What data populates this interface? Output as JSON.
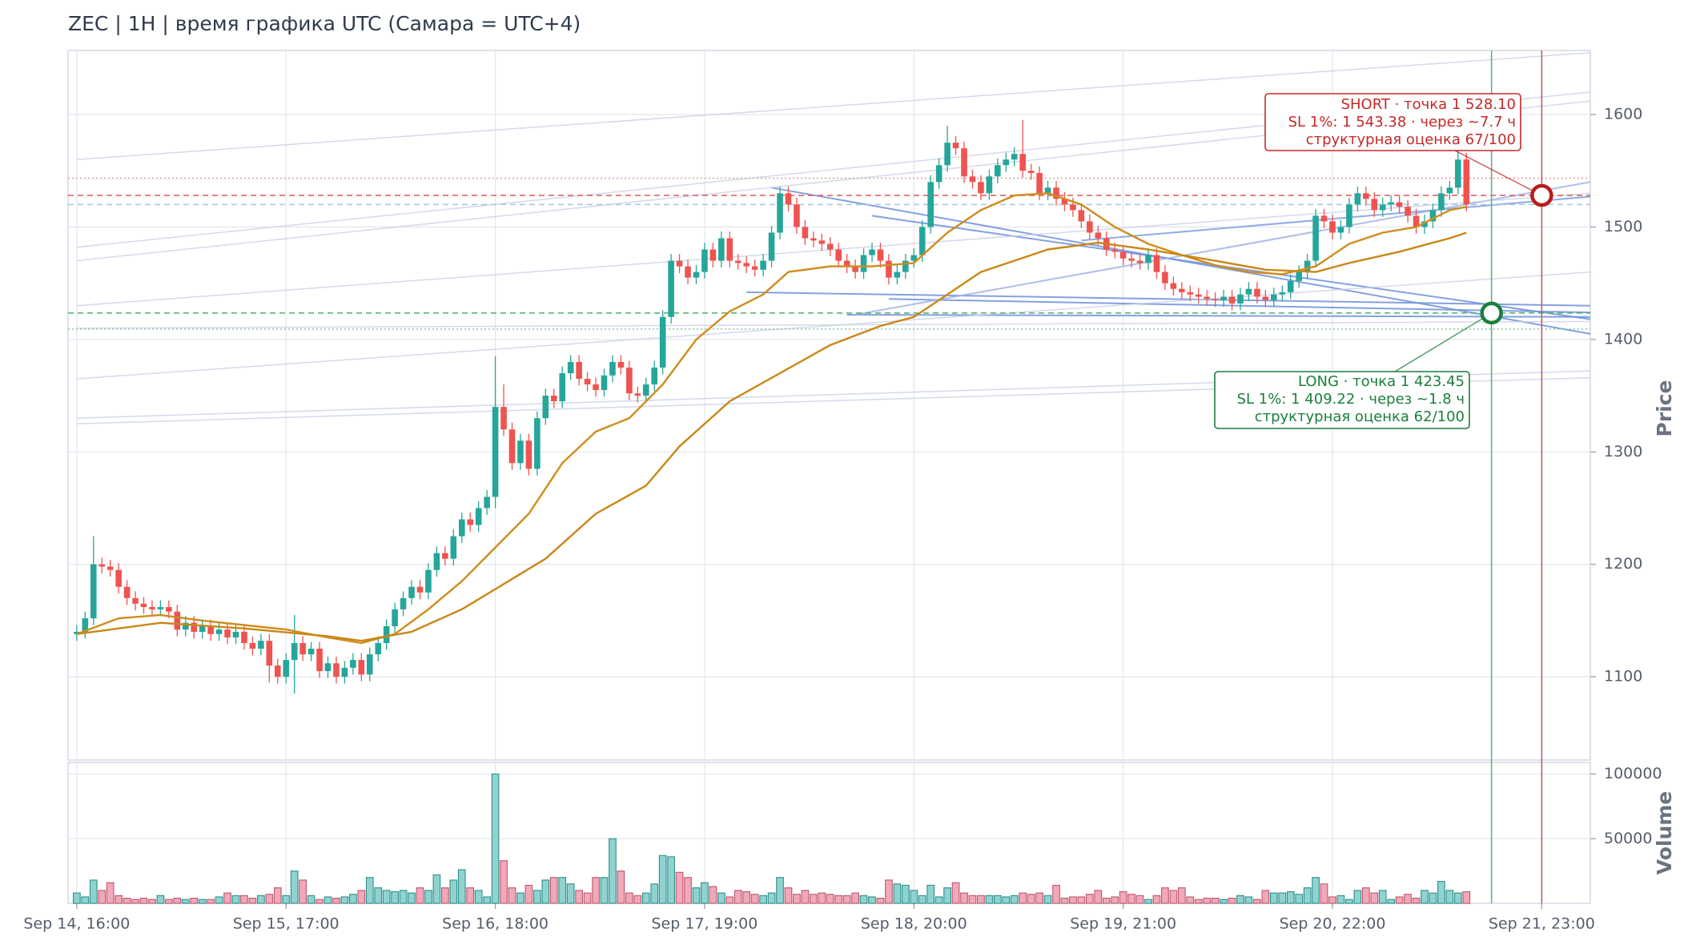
{
  "chart_data": {
    "type": "candlestick",
    "title": "ZEC | 1H | время графика UTC (Самара = UTC+4)",
    "ylabel": "Price",
    "volume_label": "Volume",
    "grid": true,
    "xlim": [
      -1.04,
      180.8
    ],
    "xticks": [
      {
        "value": 0,
        "label": "Sep 14, 16:00"
      },
      {
        "value": 25,
        "label": "Sep 15, 17:00"
      },
      {
        "value": 50,
        "label": "Sep 16, 18:00"
      },
      {
        "value": 75,
        "label": "Sep 17, 19:00"
      },
      {
        "value": 100,
        "label": "Sep 18, 20:00"
      },
      {
        "value": 125,
        "label": "Sep 19, 21:00"
      },
      {
        "value": 150,
        "label": "Sep 20, 22:00"
      },
      {
        "value": 175,
        "label": "Sep 21, 23:00"
      }
    ],
    "ylim": [
      1026,
      1657
    ],
    "yticks": [
      1100,
      1200,
      1300,
      1400,
      1500,
      1600
    ],
    "volume_ylim": [
      0,
      109000
    ],
    "volume_yticks": [
      50000,
      100000
    ],
    "up_color": "#26a69a",
    "down_color": "#ef5350",
    "volume_up_color": "#8fd3d0",
    "volume_down_color": "#f2a8b8",
    "open": [
      1138,
      1140,
      1152,
      1200,
      1198,
      1195,
      1180,
      1170,
      1165,
      1162,
      1160,
      1162,
      1158,
      1142,
      1148,
      1140,
      1145,
      1138,
      1142,
      1135,
      1140,
      1130,
      1125,
      1132,
      1110,
      1100,
      1115,
      1130,
      1120,
      1125,
      1105,
      1112,
      1100,
      1108,
      1115,
      1102,
      1120,
      1130,
      1145,
      1160,
      1170,
      1180,
      1175,
      1195,
      1210,
      1205,
      1225,
      1240,
      1235,
      1250,
      1260,
      1340,
      1320,
      1290,
      1310,
      1285,
      1330,
      1350,
      1345,
      1370,
      1380,
      1365,
      1360,
      1355,
      1368,
      1380,
      1375,
      1352,
      1350,
      1360,
      1375,
      1420,
      1470,
      1465,
      1455,
      1460,
      1480,
      1470,
      1490,
      1470,
      1468,
      1465,
      1462,
      1470,
      1495,
      1530,
      1520,
      1500,
      1490,
      1488,
      1485,
      1480,
      1470,
      1465,
      1460,
      1475,
      1480,
      1470,
      1455,
      1460,
      1470,
      1475,
      1500,
      1540,
      1555,
      1575,
      1570,
      1545,
      1540,
      1530,
      1545,
      1555,
      1560,
      1565,
      1550,
      1548,
      1530,
      1535,
      1525,
      1520,
      1515,
      1505,
      1495,
      1490,
      1480,
      1478,
      1472,
      1470,
      1468,
      1475,
      1460,
      1450,
      1445,
      1442,
      1440,
      1438,
      1436,
      1435,
      1438,
      1432,
      1440,
      1445,
      1438,
      1435,
      1440,
      1442,
      1452,
      1460,
      1470,
      1510,
      1505,
      1495,
      1500,
      1520,
      1530,
      1525,
      1515,
      1520,
      1522,
      1518,
      1510,
      1500,
      1505,
      1515,
      1530,
      1535,
      1560
    ],
    "high": [
      1146,
      1158,
      1225,
      1206,
      1204,
      1201,
      1186,
      1176,
      1171,
      1168,
      1168,
      1168,
      1164,
      1154,
      1154,
      1151,
      1151,
      1148,
      1148,
      1146,
      1146,
      1136,
      1138,
      1138,
      1116,
      1121,
      1155,
      1136,
      1131,
      1131,
      1118,
      1118,
      1114,
      1121,
      1121,
      1126,
      1136,
      1151,
      1166,
      1176,
      1186,
      1186,
      1201,
      1216,
      1216,
      1231,
      1246,
      1246,
      1256,
      1266,
      1385,
      1360,
      1326,
      1316,
      1316,
      1336,
      1356,
      1356,
      1376,
      1386,
      1386,
      1371,
      1366,
      1374,
      1386,
      1386,
      1381,
      1358,
      1366,
      1381,
      1426,
      1476,
      1476,
      1471,
      1466,
      1486,
      1486,
      1496,
      1496,
      1476,
      1474,
      1471,
      1476,
      1501,
      1536,
      1536,
      1526,
      1506,
      1496,
      1494,
      1491,
      1486,
      1476,
      1471,
      1481,
      1486,
      1486,
      1476,
      1466,
      1476,
      1481,
      1506,
      1546,
      1561,
      1590,
      1581,
      1576,
      1551,
      1546,
      1551,
      1561,
      1566,
      1571,
      1595,
      1556,
      1554,
      1541,
      1541,
      1531,
      1526,
      1521,
      1511,
      1501,
      1496,
      1486,
      1484,
      1478,
      1476,
      1481,
      1481,
      1466,
      1456,
      1451,
      1448,
      1446,
      1444,
      1442,
      1444,
      1444,
      1446,
      1451,
      1451,
      1444,
      1446,
      1448,
      1458,
      1466,
      1476,
      1516,
      1516,
      1511,
      1506,
      1526,
      1536,
      1536,
      1531,
      1526,
      1528,
      1528,
      1524,
      1516,
      1511,
      1521,
      1536,
      1541,
      1575,
      1566
    ],
    "low": [
      1132,
      1134,
      1146,
      1192,
      1189,
      1174,
      1164,
      1159,
      1156,
      1154,
      1154,
      1152,
      1136,
      1136,
      1134,
      1134,
      1132,
      1132,
      1129,
      1129,
      1124,
      1119,
      1119,
      1095,
      1094,
      1094,
      1085,
      1114,
      1114,
      1099,
      1099,
      1094,
      1094,
      1102,
      1096,
      1096,
      1114,
      1124,
      1139,
      1154,
      1164,
      1169,
      1169,
      1189,
      1199,
      1199,
      1219,
      1229,
      1229,
      1244,
      1250,
      1314,
      1284,
      1284,
      1279,
      1279,
      1324,
      1339,
      1339,
      1364,
      1359,
      1354,
      1349,
      1349,
      1362,
      1369,
      1346,
      1344,
      1344,
      1354,
      1369,
      1414,
      1459,
      1449,
      1449,
      1454,
      1464,
      1464,
      1464,
      1462,
      1459,
      1456,
      1456,
      1464,
      1489,
      1514,
      1494,
      1484,
      1482,
      1479,
      1474,
      1464,
      1459,
      1454,
      1454,
      1469,
      1464,
      1449,
      1449,
      1454,
      1464,
      1469,
      1494,
      1534,
      1549,
      1564,
      1539,
      1534,
      1524,
      1524,
      1539,
      1549,
      1554,
      1544,
      1542,
      1524,
      1524,
      1519,
      1514,
      1509,
      1499,
      1489,
      1484,
      1474,
      1472,
      1466,
      1464,
      1462,
      1462,
      1454,
      1444,
      1439,
      1436,
      1434,
      1432,
      1430,
      1429,
      1429,
      1426,
      1426,
      1434,
      1432,
      1429,
      1429,
      1434,
      1436,
      1446,
      1454,
      1464,
      1499,
      1489,
      1489,
      1494,
      1514,
      1519,
      1509,
      1509,
      1514,
      1512,
      1504,
      1494,
      1494,
      1499,
      1509,
      1524,
      1529,
      1514
    ],
    "close": [
      1140,
      1152,
      1200,
      1198,
      1195,
      1180,
      1170,
      1165,
      1162,
      1160,
      1162,
      1158,
      1142,
      1148,
      1140,
      1145,
      1138,
      1142,
      1135,
      1140,
      1130,
      1125,
      1132,
      1110,
      1100,
      1115,
      1130,
      1120,
      1125,
      1105,
      1112,
      1100,
      1108,
      1115,
      1102,
      1120,
      1130,
      1145,
      1160,
      1170,
      1180,
      1175,
      1195,
      1210,
      1205,
      1225,
      1240,
      1235,
      1250,
      1260,
      1340,
      1320,
      1290,
      1310,
      1285,
      1330,
      1350,
      1345,
      1370,
      1380,
      1365,
      1360,
      1355,
      1368,
      1380,
      1375,
      1352,
      1350,
      1360,
      1375,
      1420,
      1470,
      1465,
      1455,
      1460,
      1480,
      1470,
      1490,
      1470,
      1468,
      1465,
      1462,
      1470,
      1495,
      1530,
      1520,
      1500,
      1490,
      1488,
      1485,
      1480,
      1470,
      1465,
      1460,
      1475,
      1480,
      1470,
      1455,
      1460,
      1470,
      1475,
      1500,
      1540,
      1555,
      1575,
      1570,
      1545,
      1540,
      1530,
      1545,
      1555,
      1560,
      1565,
      1550,
      1548,
      1530,
      1535,
      1525,
      1520,
      1515,
      1505,
      1495,
      1490,
      1480,
      1478,
      1472,
      1470,
      1468,
      1475,
      1460,
      1450,
      1445,
      1442,
      1440,
      1438,
      1436,
      1435,
      1438,
      1432,
      1440,
      1445,
      1438,
      1435,
      1440,
      1442,
      1452,
      1460,
      1470,
      1510,
      1505,
      1495,
      1500,
      1520,
      1530,
      1525,
      1515,
      1520,
      1522,
      1518,
      1510,
      1500,
      1505,
      1515,
      1530,
      1535,
      1560,
      1520
    ],
    "volume": [
      8000,
      5000,
      18000,
      10000,
      16000,
      6000,
      4000,
      3000,
      4000,
      3000,
      6000,
      3000,
      4000,
      3000,
      4000,
      3000,
      3000,
      5000,
      8000,
      6000,
      6000,
      4000,
      6000,
      7000,
      12000,
      6000,
      25000,
      18000,
      6000,
      3000,
      5000,
      4000,
      5000,
      7000,
      10000,
      20000,
      12000,
      10000,
      9000,
      10000,
      8000,
      12000,
      10000,
      22000,
      12000,
      18000,
      26000,
      12000,
      10000,
      5000,
      100000,
      33000,
      12000,
      8000,
      14000,
      10000,
      18000,
      20000,
      20000,
      15000,
      10000,
      8000,
      20000,
      20000,
      50000,
      25000,
      8000,
      6000,
      8000,
      15000,
      37000,
      36000,
      24000,
      20000,
      12000,
      16000,
      13000,
      8000,
      5000,
      10000,
      9000,
      7000,
      6000,
      8000,
      20000,
      12000,
      7000,
      10000,
      7000,
      8000,
      7000,
      6000,
      6000,
      8000,
      6000,
      5000,
      4000,
      18000,
      15000,
      14000,
      10000,
      6000,
      14000,
      5000,
      12000,
      16000,
      8000,
      6000,
      6000,
      6000,
      6000,
      5000,
      6000,
      8000,
      7000,
      8000,
      6000,
      14000,
      4000,
      5000,
      5000,
      7000,
      10000,
      4000,
      5000,
      9000,
      7000,
      6000,
      3000,
      6000,
      12000,
      10000,
      12000,
      5000,
      3000,
      4000,
      4000,
      3000,
      4000,
      6000,
      5000,
      3000,
      10000,
      8000,
      8000,
      9000,
      7000,
      12000,
      20000,
      15000,
      5000,
      6000,
      3000,
      10000,
      12000,
      8000,
      10000,
      3000,
      5000,
      7000,
      4000,
      10000,
      8000,
      17000,
      10000,
      8000,
      9000
    ],
    "lines": [
      {
        "color": "#cf8c1c",
        "x": [
          0,
          5,
          10,
          15,
          20,
          25,
          30,
          34,
          38,
          42,
          46,
          50,
          54,
          58,
          62,
          66,
          70,
          74,
          78,
          82,
          85,
          90,
          95,
          100,
          104,
          108,
          112,
          116,
          120,
          124,
          128,
          132,
          136,
          140,
          144,
          148,
          152,
          156,
          160,
          164,
          166
        ],
        "values": [
          1138,
          1152,
          1155,
          1150,
          1146,
          1142,
          1135,
          1130,
          1138,
          1160,
          1185,
          1215,
          1245,
          1290,
          1318,
          1330,
          1360,
          1400,
          1425,
          1440,
          1460,
          1465,
          1465,
          1468,
          1495,
          1515,
          1528,
          1530,
          1520,
          1500,
          1485,
          1475,
          1466,
          1460,
          1458,
          1465,
          1485,
          1495,
          1500,
          1515,
          1518
        ]
      },
      {
        "color": "#c98716",
        "x": [
          0,
          10,
          20,
          30,
          34,
          40,
          46,
          50,
          56,
          62,
          68,
          72,
          78,
          84,
          90,
          96,
          100,
          104,
          108,
          116,
          122,
          128,
          136,
          142,
          148,
          152,
          158,
          164,
          166
        ],
        "values": [
          1138,
          1148,
          1143,
          1136,
          1132,
          1140,
          1160,
          1178,
          1205,
          1245,
          1270,
          1305,
          1345,
          1370,
          1395,
          1412,
          1420,
          1440,
          1460,
          1480,
          1486,
          1480,
          1470,
          1462,
          1460,
          1468,
          1478,
          1490,
          1495
        ]
      }
    ],
    "trendlines": [
      {
        "color": "#6e8fdc",
        "points": [
          83,
          1535,
          180.8,
          1405
        ]
      },
      {
        "color": "#6e8fdc",
        "points": [
          95,
          1510,
          180.8,
          1418
        ]
      },
      {
        "color": "#6e8fdc",
        "points": [
          80,
          1442,
          180.8,
          1430
        ]
      },
      {
        "color": "#6e8fdc",
        "points": [
          92,
          1422,
          180.8,
          1420
        ]
      },
      {
        "color": "#6e8fdc",
        "points": [
          97,
          1436,
          180.8,
          1424
        ]
      },
      {
        "color": "#7d9be0",
        "points": [
          120,
          1488,
          180.8,
          1527
        ]
      },
      {
        "color": "#9fb3e4",
        "points": [
          93,
          1422,
          180.8,
          1540
        ]
      },
      {
        "color": "#c7d0e6",
        "points": [
          0,
          1430,
          180.8,
          1530
        ]
      },
      {
        "color": "#c7d0e6",
        "points": [
          0,
          1560,
          180.8,
          1655
        ]
      },
      {
        "color": "#c7d0e6",
        "points": [
          0,
          1330,
          180.8,
          1372
        ]
      },
      {
        "color": "#c7d0e6",
        "points": [
          0,
          1325,
          180.8,
          1366
        ]
      },
      {
        "color": "#c7d0e6",
        "points": [
          0,
          1365,
          180.8,
          1460
        ]
      },
      {
        "color": "#c7d0e6",
        "points": [
          0,
          1482,
          180.8,
          1620
        ]
      },
      {
        "color": "#c7d0e6",
        "points": [
          0,
          1410,
          180.8,
          1416
        ]
      },
      {
        "color": "#c7d0e6",
        "points": [
          0,
          1470,
          180.8,
          1612
        ]
      }
    ],
    "levels": [
      {
        "value": 1528.1,
        "color": "#e05555",
        "style": "dashed"
      },
      {
        "value": 1543.38,
        "color": "#e59a9a",
        "style": "dotted"
      },
      {
        "value": 1423.45,
        "color": "#4caf6a",
        "style": "dashed"
      },
      {
        "value": 1409.22,
        "color": "#8cc59c",
        "style": "dotted"
      },
      {
        "value": 1520,
        "color": "#a8c4e4",
        "style": "dashed"
      }
    ],
    "vlines": [
      {
        "x": 169,
        "color": "#66b27c"
      },
      {
        "x": 175,
        "color": "#c46060"
      }
    ],
    "markers": [
      {
        "x": 175,
        "y": 1528.1,
        "color": "#b71c1c"
      },
      {
        "x": 169,
        "y": 1423.45,
        "color": "#1b7f3a"
      }
    ],
    "annotations": [
      {
        "color": "#c62828",
        "text": [
          "SHORT · точка 1 528.10",
          "SL 1%: 1 543.38 · через ~7.7 ч",
          "структурная оценка 67/100"
        ]
      },
      {
        "color": "#1b7f3a",
        "text": [
          "LONG · точка 1 423.45",
          "SL 1%: 1 409.22 · через ~1.8 ч",
          "структурная оценка 62/100"
        ]
      }
    ]
  }
}
